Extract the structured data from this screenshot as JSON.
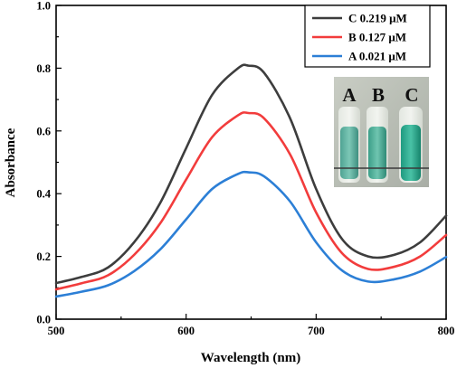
{
  "chart_data": {
    "type": "line",
    "xlabel": "Wavelength (nm)",
    "ylabel": "Absorbance",
    "xlim": [
      500,
      800
    ],
    "ylim": [
      0.0,
      1.0
    ],
    "xticks": [
      500,
      600,
      700,
      800
    ],
    "yticks": [
      0.0,
      0.2,
      0.4,
      0.6,
      0.8,
      1.0
    ],
    "grid": false,
    "legend_position": "top-right",
    "x": [
      500,
      520,
      540,
      560,
      580,
      600,
      620,
      640,
      648,
      660,
      680,
      700,
      720,
      740,
      760,
      780,
      800
    ],
    "series": [
      {
        "name": "C 0.219 μM",
        "color": "#3d3d3d",
        "values": [
          0.115,
          0.135,
          0.165,
          0.245,
          0.37,
          0.545,
          0.715,
          0.8,
          0.808,
          0.785,
          0.64,
          0.415,
          0.255,
          0.2,
          0.205,
          0.245,
          0.33
        ]
      },
      {
        "name": "B 0.127 μM",
        "color": "#f23c3c",
        "values": [
          0.095,
          0.115,
          0.14,
          0.205,
          0.305,
          0.445,
          0.58,
          0.65,
          0.657,
          0.64,
          0.525,
          0.34,
          0.21,
          0.16,
          0.167,
          0.2,
          0.268
        ]
      },
      {
        "name": "A 0.021 μM",
        "color": "#2c7fd6",
        "values": [
          0.072,
          0.088,
          0.108,
          0.153,
          0.222,
          0.318,
          0.415,
          0.463,
          0.468,
          0.455,
          0.375,
          0.245,
          0.155,
          0.12,
          0.127,
          0.152,
          0.198
        ]
      }
    ],
    "inset_labels": [
      "A",
      "B",
      "C"
    ]
  }
}
